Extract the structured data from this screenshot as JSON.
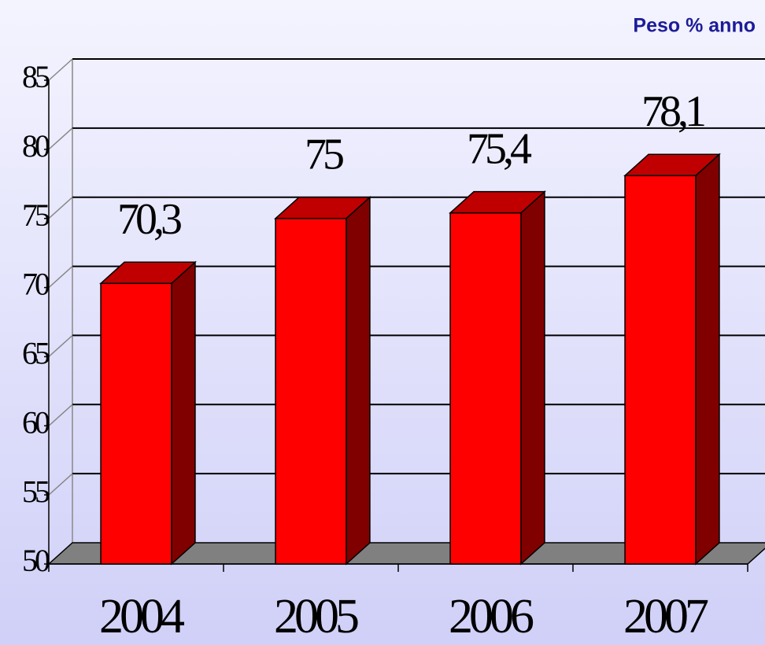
{
  "chart_data": {
    "type": "bar3d",
    "title": "Peso % anno",
    "categories": [
      "2004",
      "2005",
      "2006",
      "2007"
    ],
    "values": [
      70.3,
      75,
      75.4,
      78.1
    ],
    "value_labels": [
      "70,3",
      "75",
      "75,4",
      "78,1"
    ],
    "color": "#ff0000",
    "top_color": "#c00000",
    "side_color": "#800000",
    "ylim": [
      50,
      85
    ],
    "yticks": [
      50,
      55,
      60,
      65,
      70,
      75,
      80,
      85
    ],
    "grid": true
  }
}
